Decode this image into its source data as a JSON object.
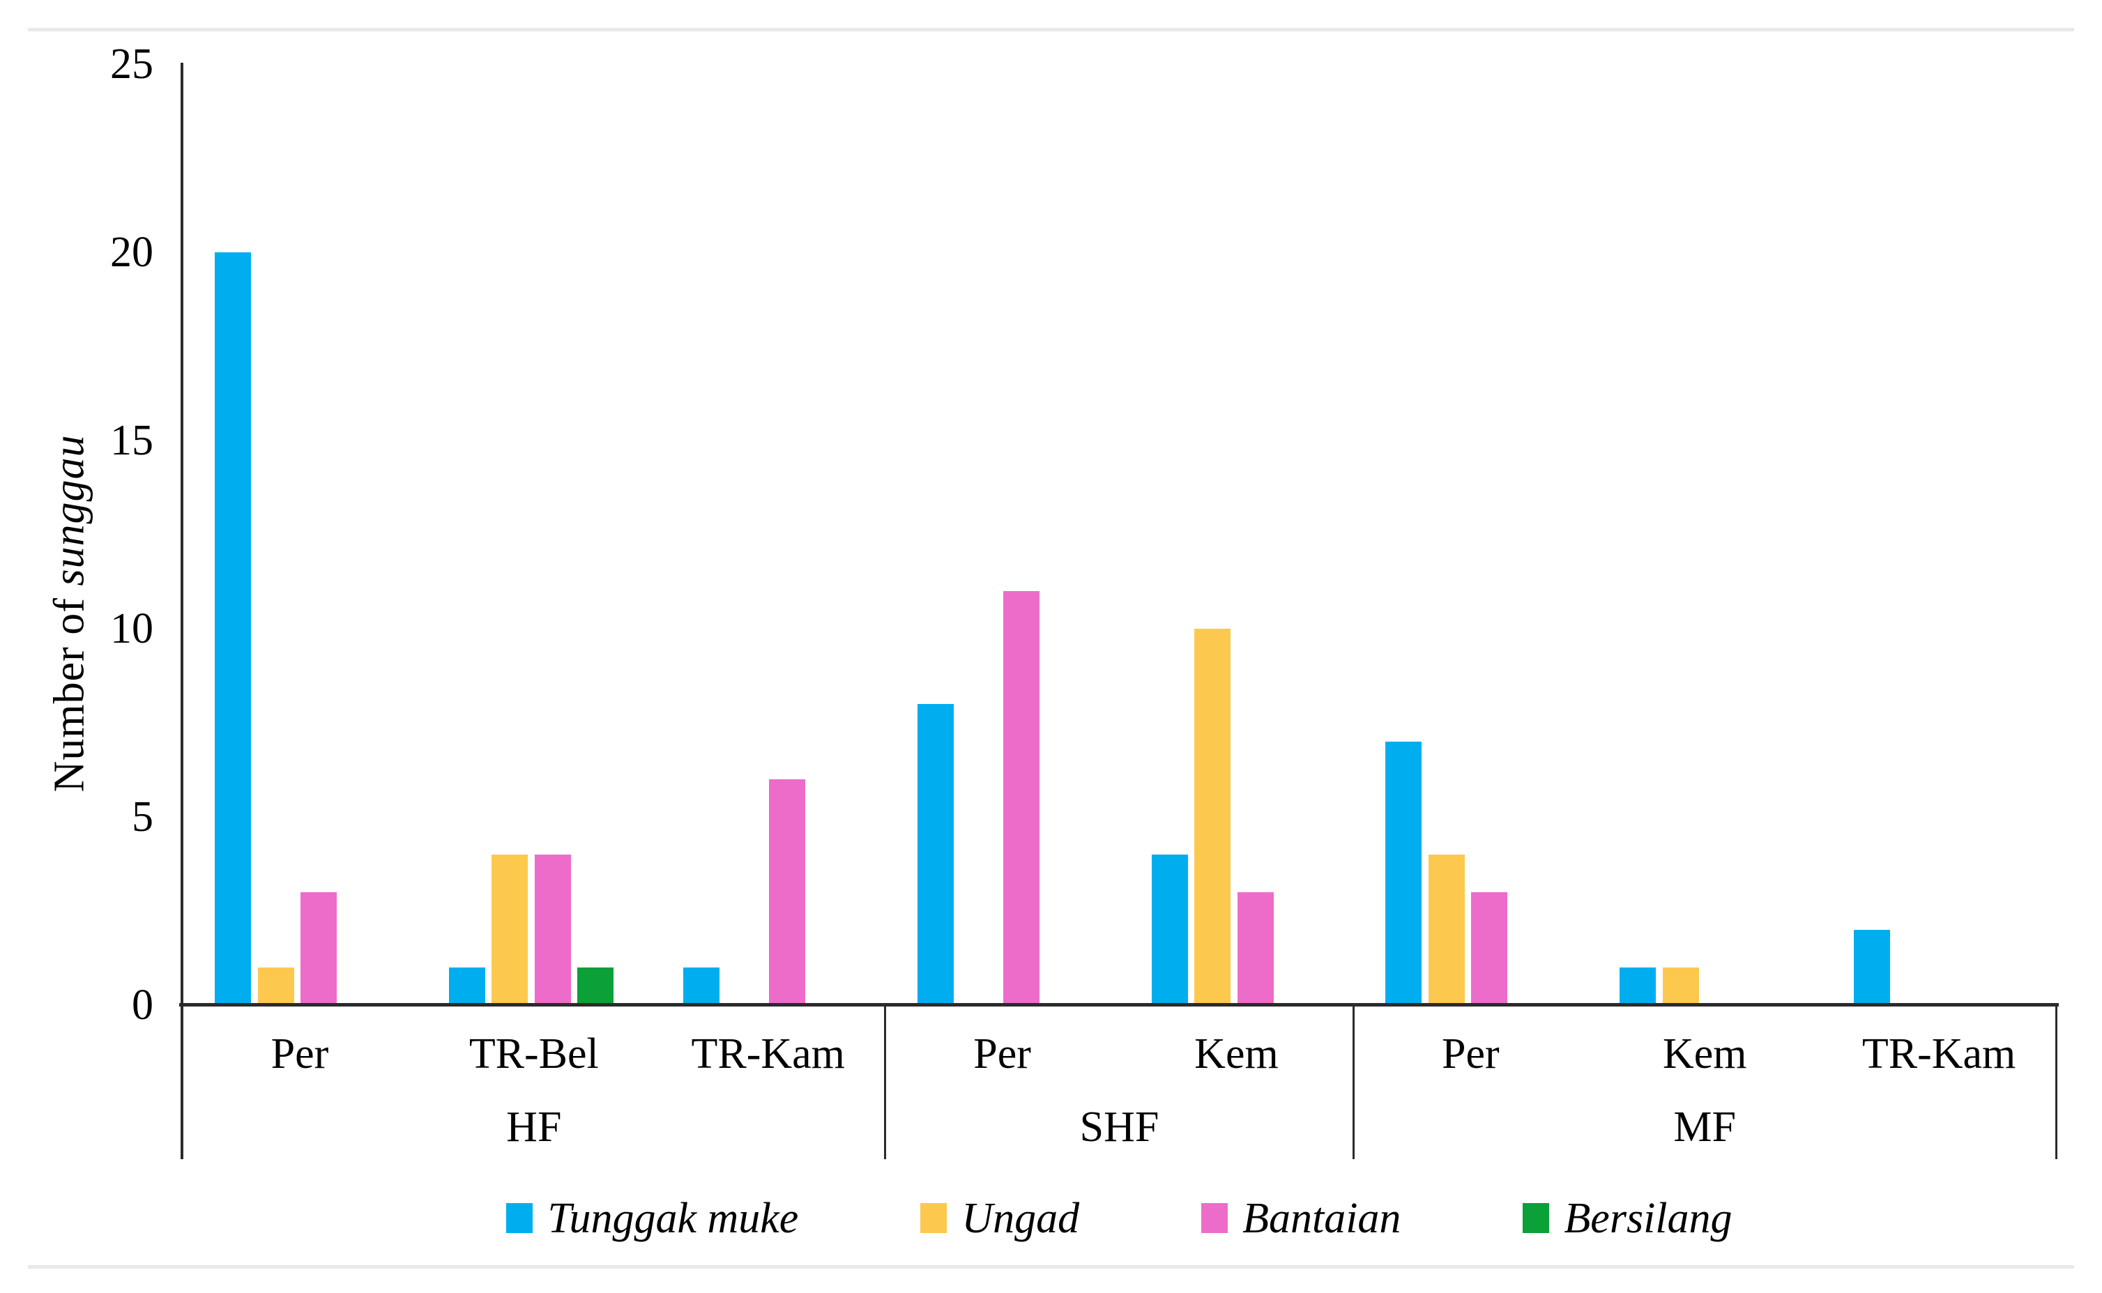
{
  "page": {
    "background": "#ffffff",
    "divider_color": "#e8e8e8",
    "axis_color": "#2b2b2b"
  },
  "chart_data": {
    "type": "bar",
    "title": "",
    "ylabel": "Number of sunggau",
    "ylabel_regular": "Number of ",
    "ylabel_italic": "sunggau",
    "xlabel": "",
    "ylim": [
      0,
      25
    ],
    "yticks": [
      0,
      5,
      10,
      15,
      20,
      25
    ],
    "grid": false,
    "legend_position": "bottom-center",
    "groups": [
      {
        "label": "HF",
        "categories": [
          "Per",
          "TR-Bel",
          "TR-Kam"
        ]
      },
      {
        "label": "SHF",
        "categories": [
          "Per",
          "Kem"
        ]
      },
      {
        "label": "MF",
        "categories": [
          "Per",
          "Kem",
          "TR-Kam"
        ]
      }
    ],
    "category_order": [
      "HF Per",
      "HF TR-Bel",
      "HF TR-Kam",
      "SHF Per",
      "SHF Kem",
      "MF Per",
      "MF Kem",
      "MF TR-Kam"
    ],
    "series": [
      {
        "name": "Tunggak muke",
        "color": "#00AEEF",
        "values": [
          20,
          1,
          1,
          8,
          4,
          7,
          1,
          2
        ]
      },
      {
        "name": "Ungad",
        "color": "#FCC84E",
        "values": [
          1,
          4,
          0,
          0,
          10,
          4,
          1,
          0
        ]
      },
      {
        "name": "Bantaian",
        "color": "#EE6CC9",
        "values": [
          3,
          4,
          6,
          11,
          3,
          3,
          0,
          0
        ]
      },
      {
        "name": "Bersilang",
        "color": "#0BA038",
        "values": [
          0,
          1,
          0,
          0,
          0,
          0,
          0,
          0
        ]
      }
    ]
  }
}
